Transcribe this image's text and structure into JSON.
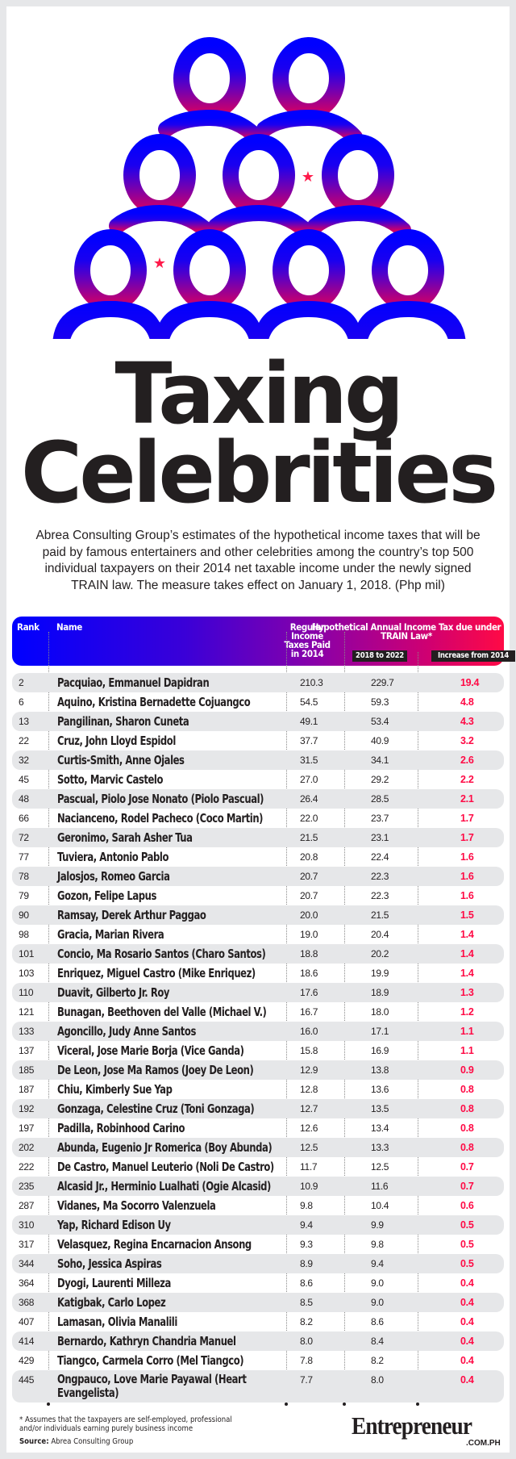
{
  "header": {
    "title_line1": "Taxing",
    "title_line2": "Celebrities",
    "intro": "Abrea Consulting Group’s estimates of the hypothetical income taxes that will be paid by famous entertainers and other celebrities among the country’s top 500 individual taxpayers on their 2014 net taxable income  under the newly signed TRAIN law. The measure takes effect on January 1, 2018. (Php mil)"
  },
  "illustration": {
    "icon": "crowd-of-people-icon",
    "gradient_top": "#0000ff",
    "gradient_bottom": "#cc006a",
    "star_red": "#ff1a4a",
    "star_blue": "#0000ff"
  },
  "table": {
    "columns": {
      "rank": "Rank",
      "name": "Name",
      "regular": "Regular Income Taxes Paid in 2014",
      "hypothetical": "Hypothetical Annual Income Tax due under TRAIN Law*",
      "sub_2018": "2018 to 2022",
      "sub_increase": "Increase from 2014"
    },
    "accent_color": "#ff0a45",
    "rows": [
      {
        "rank": "2",
        "name": "Pacquiao, Emmanuel Dapidran",
        "regular": "210.3",
        "train": "229.7",
        "increase": "19.4"
      },
      {
        "rank": "6",
        "name": "Aquino, Kristina Bernadette Cojuangco",
        "regular": "54.5",
        "train": "59.3",
        "increase": "4.8"
      },
      {
        "rank": "13",
        "name": "Pangilinan, Sharon Cuneta",
        "regular": "49.1",
        "train": "53.4",
        "increase": "4.3"
      },
      {
        "rank": "22",
        "name": "Cruz, John Lloyd Espidol",
        "regular": "37.7",
        "train": "40.9",
        "increase": "3.2"
      },
      {
        "rank": "32",
        "name": "Curtis-Smith, Anne Ojales",
        "regular": "31.5",
        "train": "34.1",
        "increase": "2.6"
      },
      {
        "rank": "45",
        "name": "Sotto, Marvic Castelo",
        "regular": "27.0",
        "train": "29.2",
        "increase": "2.2"
      },
      {
        "rank": "48",
        "name": "Pascual, Piolo Jose Nonato (Piolo Pascual)",
        "regular": "26.4",
        "train": "28.5",
        "increase": "2.1"
      },
      {
        "rank": "66",
        "name": "Nacianceno, Rodel Pacheco (Coco Martin)",
        "regular": "22.0",
        "train": "23.7",
        "increase": "1.7"
      },
      {
        "rank": "72",
        "name": "Geronimo, Sarah Asher Tua",
        "regular": "21.5",
        "train": "23.1",
        "increase": "1.7"
      },
      {
        "rank": "77",
        "name": "Tuviera, Antonio Pablo",
        "regular": "20.8",
        "train": "22.4",
        "increase": "1.6"
      },
      {
        "rank": "78",
        "name": "Jalosjos, Romeo Garcia",
        "regular": "20.7",
        "train": "22.3",
        "increase": "1.6"
      },
      {
        "rank": "79",
        "name": "Gozon, Felipe Lapus",
        "regular": "20.7",
        "train": "22.3",
        "increase": "1.6"
      },
      {
        "rank": "90",
        "name": "Ramsay, Derek Arthur Paggao",
        "regular": "20.0",
        "train": "21.5",
        "increase": "1.5"
      },
      {
        "rank": "98",
        "name": "Gracia, Marian Rivera",
        "regular": "19.0",
        "train": "20.4",
        "increase": "1.4"
      },
      {
        "rank": "101",
        "name": "Concio, Ma Rosario Santos (Charo Santos)",
        "regular": "18.8",
        "train": "20.2",
        "increase": "1.4"
      },
      {
        "rank": "103",
        "name": "Enriquez, Miguel Castro (Mike Enriquez)",
        "regular": "18.6",
        "train": "19.9",
        "increase": "1.4"
      },
      {
        "rank": "110",
        "name": "Duavit, Gilberto Jr. Roy",
        "regular": "17.6",
        "train": "18.9",
        "increase": "1.3"
      },
      {
        "rank": "121",
        "name": "Bunagan, Beethoven del Valle (Michael V.)",
        "regular": "16.7",
        "train": "18.0",
        "increase": "1.2"
      },
      {
        "rank": "133",
        "name": "Agoncillo, Judy Anne Santos",
        "regular": "16.0",
        "train": "17.1",
        "increase": "1.1"
      },
      {
        "rank": "137",
        "name": "Viceral, Jose Marie Borja (Vice Ganda)",
        "regular": "15.8",
        "train": "16.9",
        "increase": "1.1"
      },
      {
        "rank": "185",
        "name": "De Leon, Jose Ma Ramos (Joey De Leon)",
        "regular": "12.9",
        "train": "13.8",
        "increase": "0.9"
      },
      {
        "rank": "187",
        "name": "Chiu, Kimberly Sue Yap",
        "regular": "12.8",
        "train": "13.6",
        "increase": "0.8"
      },
      {
        "rank": "192",
        "name": "Gonzaga, Celestine Cruz (Toni Gonzaga)",
        "regular": "12.7",
        "train": "13.5",
        "increase": "0.8"
      },
      {
        "rank": "197",
        "name": "Padilla, Robinhood Carino",
        "regular": "12.6",
        "train": "13.4",
        "increase": "0.8"
      },
      {
        "rank": "202",
        "name": "Abunda, Eugenio Jr Romerica (Boy Abunda)",
        "regular": "12.5",
        "train": "13.3",
        "increase": "0.8"
      },
      {
        "rank": "222",
        "name": "De Castro, Manuel Leuterio (Noli De Castro)",
        "regular": "11.7",
        "train": "12.5",
        "increase": "0.7"
      },
      {
        "rank": "235",
        "name": "Alcasid Jr., Herminio Lualhati (Ogie Alcasid)",
        "regular": "10.9",
        "train": "11.6",
        "increase": "0.7"
      },
      {
        "rank": "287",
        "name": "Vidanes, Ma Socorro Valenzuela",
        "regular": "9.8",
        "train": "10.4",
        "increase": "0.6"
      },
      {
        "rank": "310",
        "name": "Yap, Richard Edison Uy",
        "regular": "9.4",
        "train": "9.9",
        "increase": "0.5"
      },
      {
        "rank": "317",
        "name": "Velasquez, Regina Encarnacion Ansong",
        "regular": "9.3",
        "train": "9.8",
        "increase": "0.5"
      },
      {
        "rank": "344",
        "name": "Soho, Jessica Aspiras",
        "regular": "8.9",
        "train": "9.4",
        "increase": "0.5"
      },
      {
        "rank": "364",
        "name": "Dyogi, Laurenti Milleza",
        "regular": "8.6",
        "train": "9.0",
        "increase": "0.4"
      },
      {
        "rank": "368",
        "name": "Katigbak, Carlo Lopez",
        "regular": "8.5",
        "train": "9.0",
        "increase": "0.4"
      },
      {
        "rank": "407",
        "name": "Lamasan, Olivia Manalili",
        "regular": "8.2",
        "train": "8.6",
        "increase": "0.4"
      },
      {
        "rank": "414",
        "name": "Bernardo, Kathryn Chandria Manuel",
        "regular": "8.0",
        "train": "8.4",
        "increase": "0.4"
      },
      {
        "rank": "429",
        "name": "Tiangco, Carmela Corro (Mel Tiangco)",
        "regular": "7.8",
        "train": "8.2",
        "increase": "0.4"
      },
      {
        "rank": "445",
        "name": "Ongpauco, Love Marie Payawal (Heart Evangelista)",
        "regular": "7.7",
        "train": "8.0",
        "increase": "0.4"
      }
    ]
  },
  "footer": {
    "note": "* Assumes that the taxpayers are self-employed, professional and/or individuals earning purely business income",
    "source_label": "Source:",
    "source_value": " Abrea Consulting Group",
    "logo": "Entrepreneur",
    "logo_sub": ".COM.PH"
  }
}
